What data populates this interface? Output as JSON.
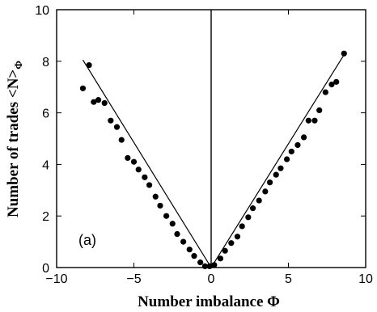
{
  "chart_data": {
    "type": "scatter",
    "title": "",
    "xlabel": "Number imbalance Φ",
    "ylabel": "Number of trades <N>",
    "ylabel_sub": "Φ",
    "annotation": "(a)",
    "xlim": [
      -10,
      10
    ],
    "ylim": [
      0,
      10
    ],
    "xticks": [
      -10,
      -5,
      0,
      5,
      10
    ],
    "yticks": [
      0,
      2,
      4,
      6,
      8,
      10
    ],
    "xtick_labels": [
      "−10",
      "−5",
      "0",
      "5",
      "10"
    ],
    "ytick_labels": [
      "0",
      "2",
      "4",
      "6",
      "8",
      "10"
    ],
    "grid": false,
    "colors": {
      "points": "#000000",
      "line": "#000000"
    },
    "series": [
      {
        "values_x": [
          -8.3,
          -7.9,
          -7.6,
          -7.3,
          -6.9,
          -6.5,
          -6.1,
          -5.8,
          -5.4,
          -5.0,
          -4.7,
          -4.3,
          -4.0,
          -3.6,
          -3.3,
          -2.9,
          -2.5,
          -2.2,
          -1.8,
          -1.4,
          -1.1,
          -0.7,
          -0.4,
          -0.1,
          0.2,
          0.6,
          0.9,
          1.3,
          1.7,
          2.0,
          2.4,
          2.7,
          3.1,
          3.5,
          3.8,
          4.2,
          4.5,
          4.9,
          5.2,
          5.6,
          6.0,
          6.3,
          6.7,
          7.0,
          7.4,
          7.8,
          8.1,
          8.6
        ],
        "values_y": [
          6.95,
          7.85,
          6.42,
          6.5,
          6.38,
          5.7,
          5.45,
          4.95,
          4.25,
          4.1,
          3.8,
          3.5,
          3.2,
          2.75,
          2.4,
          2.0,
          1.7,
          1.3,
          1.0,
          0.7,
          0.45,
          0.2,
          0.05,
          0.05,
          0.1,
          0.35,
          0.65,
          0.95,
          1.2,
          1.6,
          1.95,
          2.3,
          2.6,
          2.95,
          3.3,
          3.6,
          3.85,
          4.2,
          4.5,
          4.75,
          5.05,
          5.7,
          5.7,
          6.1,
          6.8,
          7.1,
          7.2,
          8.3
        ]
      }
    ],
    "fit_line": {
      "x": [
        -8.3,
        0,
        8.7
      ],
      "y": [
        8.05,
        0,
        8.35
      ]
    }
  }
}
